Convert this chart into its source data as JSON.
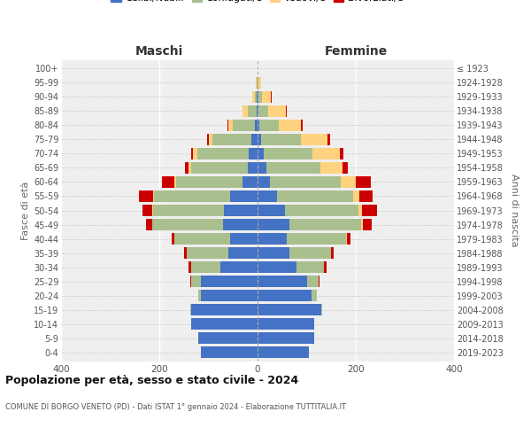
{
  "age_groups": [
    "0-4",
    "5-9",
    "10-14",
    "15-19",
    "20-24",
    "25-29",
    "30-34",
    "35-39",
    "40-44",
    "45-49",
    "50-54",
    "55-59",
    "60-64",
    "65-69",
    "70-74",
    "75-79",
    "80-84",
    "85-89",
    "90-94",
    "95-99",
    "100+"
  ],
  "birth_years": [
    "2019-2023",
    "2014-2018",
    "2009-2013",
    "2004-2008",
    "1999-2003",
    "1994-1998",
    "1989-1993",
    "1984-1988",
    "1979-1983",
    "1974-1978",
    "1969-1973",
    "1964-1968",
    "1959-1963",
    "1954-1958",
    "1949-1953",
    "1944-1948",
    "1939-1943",
    "1934-1938",
    "1929-1933",
    "1924-1928",
    "≤ 1923"
  ],
  "maschi": {
    "celibi": [
      115,
      120,
      135,
      135,
      115,
      115,
      75,
      60,
      55,
      70,
      68,
      55,
      30,
      20,
      18,
      12,
      5,
      2,
      1,
      0,
      0
    ],
    "coniugati": [
      0,
      0,
      1,
      2,
      5,
      20,
      60,
      85,
      115,
      145,
      145,
      155,
      135,
      115,
      105,
      80,
      45,
      18,
      5,
      2,
      0
    ],
    "vedovi": [
      0,
      0,
      0,
      0,
      0,
      0,
      0,
      0,
      0,
      0,
      2,
      2,
      5,
      5,
      8,
      8,
      10,
      10,
      5,
      1,
      0
    ],
    "divorziati": [
      0,
      0,
      0,
      0,
      0,
      2,
      5,
      5,
      5,
      12,
      20,
      30,
      25,
      8,
      5,
      3,
      2,
      1,
      0,
      0,
      0
    ]
  },
  "femmine": {
    "nubili": [
      105,
      115,
      115,
      130,
      110,
      100,
      80,
      65,
      60,
      65,
      55,
      40,
      25,
      18,
      12,
      8,
      4,
      2,
      1,
      0,
      0
    ],
    "coniugate": [
      0,
      0,
      1,
      2,
      10,
      25,
      55,
      85,
      120,
      145,
      150,
      155,
      145,
      110,
      100,
      80,
      40,
      20,
      8,
      2,
      0
    ],
    "vedove": [
      0,
      0,
      0,
      0,
      0,
      0,
      0,
      0,
      2,
      5,
      8,
      12,
      30,
      45,
      55,
      55,
      45,
      35,
      18,
      5,
      0
    ],
    "divorziate": [
      0,
      0,
      0,
      0,
      0,
      2,
      5,
      5,
      8,
      18,
      30,
      28,
      30,
      10,
      8,
      5,
      3,
      2,
      1,
      0,
      0
    ]
  },
  "colors": {
    "celibi": "#4472C4",
    "coniugati": "#AABF8E",
    "vedovi": "#FFD280",
    "divorziati": "#CC0000"
  },
  "xlim": 400,
  "title": "Popolazione per età, sesso e stato civile - 2024",
  "subtitle": "COMUNE DI BORGO VENETO (PD) - Dati ISTAT 1° gennaio 2024 - Elaborazione TUTTITALIA.IT",
  "xlabel_left": "Maschi",
  "xlabel_right": "Femmine",
  "ylabel_left": "Fasce di età",
  "ylabel_right": "Anni di nascita",
  "bg_color": "#efefef",
  "bar_height": 0.82
}
